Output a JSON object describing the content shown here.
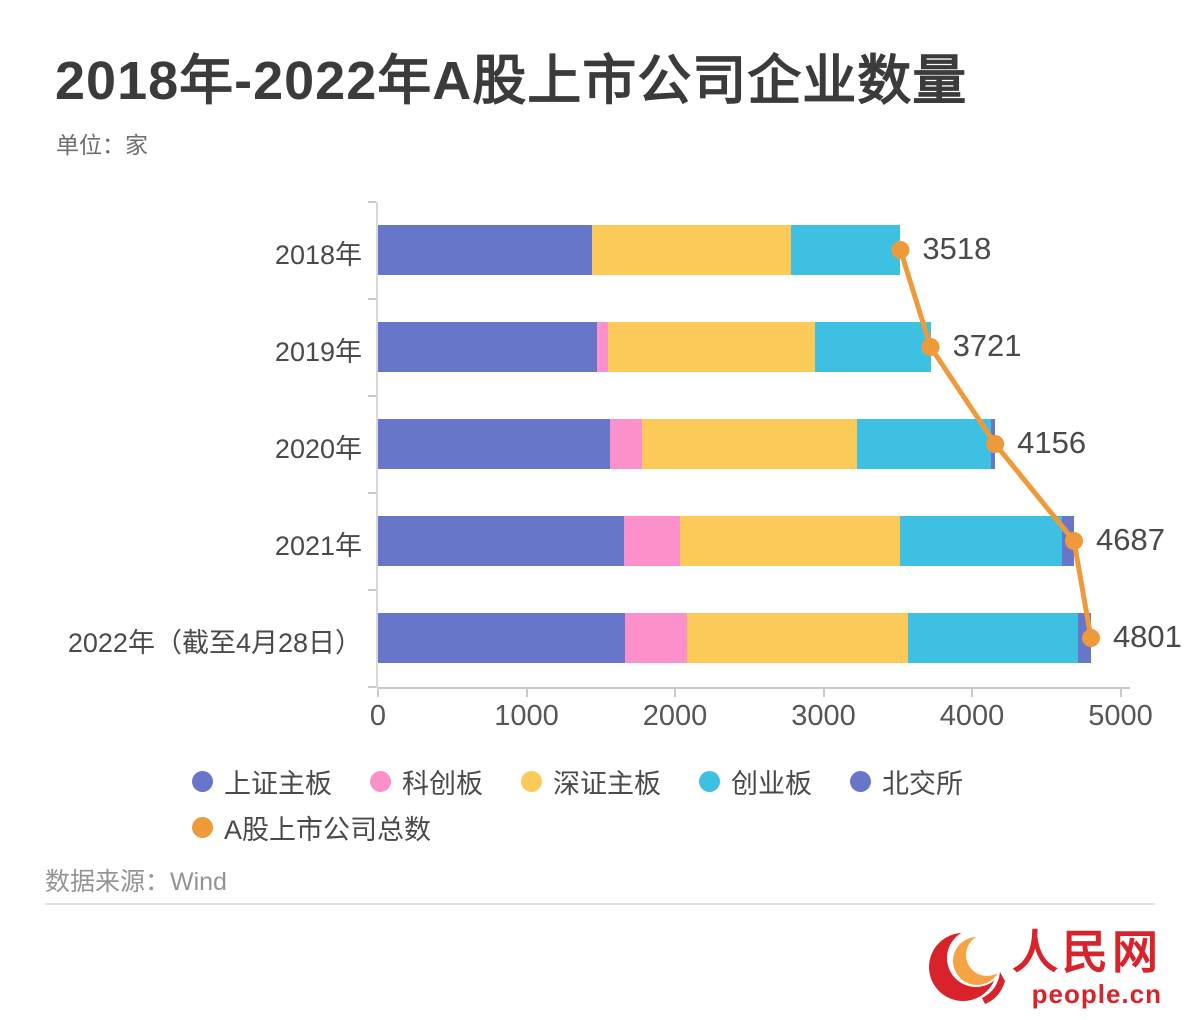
{
  "header": {
    "unit": "单位：家"
  },
  "footer": {
    "source": "数据来源：Wind",
    "logo_name": "人民网",
    "logo_domain": "people.cn"
  },
  "colors": {
    "sse_main": "#6776c8",
    "star": "#fb90cb",
    "szse_main": "#fbca59",
    "chinext": "#3ec0e3",
    "bse": "#6776c8",
    "total_line": "#ee9a3b",
    "brand_red": "#d8232a",
    "brand_orange": "#f5a344"
  },
  "chart_data": {
    "type": "bar",
    "orientation": "horizontal",
    "stacked": true,
    "title": "2018年-2022年A股上市公司企业数量",
    "unit": "单位：家",
    "categories": [
      "2018年",
      "2019年",
      "2020年",
      "2021年",
      "2022年（截至4月28日）"
    ],
    "series": [
      {
        "name": "上证主板",
        "color": "#6776c8",
        "values": [
          1444,
          1476,
          1563,
          1655,
          1662
        ]
      },
      {
        "name": "科创板",
        "color": "#fb90cb",
        "values": [
          0,
          70,
          215,
          377,
          416
        ]
      },
      {
        "name": "深证主板",
        "color": "#fbca59",
        "values": [
          1335,
          1396,
          1448,
          1483,
          1494
        ]
      },
      {
        "name": "创业板",
        "color": "#3ec0e3",
        "values": [
          739,
          779,
          900,
          1090,
          1140
        ]
      },
      {
        "name": "北交所",
        "color": "#6776c8",
        "values": [
          0,
          0,
          30,
          82,
          89
        ]
      }
    ],
    "line_series": {
      "name": "A股上市公司总数",
      "color": "#ee9a3b",
      "values": [
        3518,
        3721,
        4156,
        4687,
        4801
      ]
    },
    "xlim": [
      0,
      5000
    ],
    "x_ticks": [
      "0",
      "1000",
      "2000",
      "3000",
      "4000",
      "5000"
    ],
    "grid": false,
    "legend_position": "bottom",
    "source": "数据来源：Wind"
  }
}
